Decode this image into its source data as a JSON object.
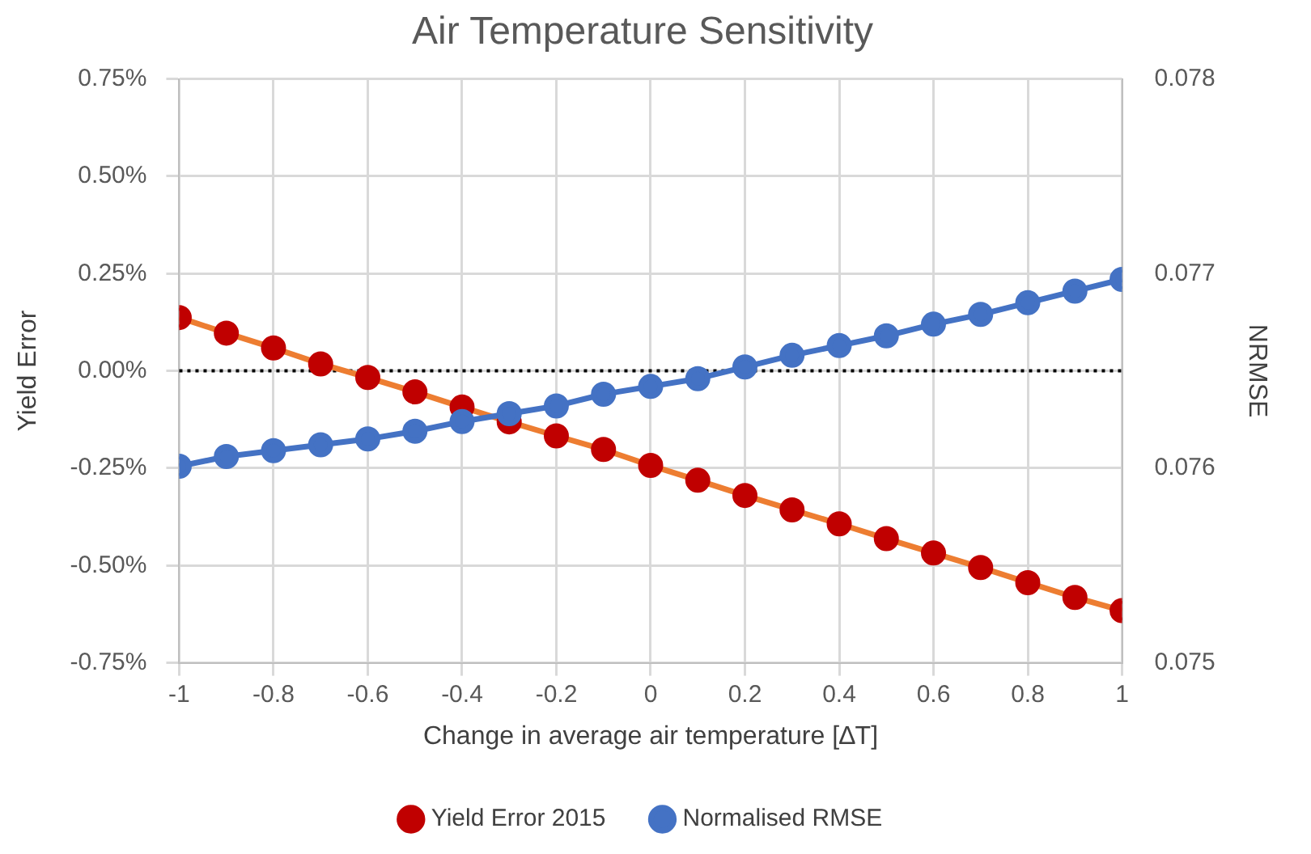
{
  "chart_data": {
    "type": "line",
    "title": "Air Temperature Sensitivity",
    "xlabel": "Change in average air temperature [∆T]",
    "ylabel": "Yield Error",
    "y2label": "NRMSE",
    "x": [
      -1,
      -0.9,
      -0.8,
      -0.7,
      -0.6,
      -0.5,
      -0.4,
      -0.3,
      -0.2,
      -0.1,
      0,
      0.1,
      0.2,
      0.3,
      0.4,
      0.5,
      0.6,
      0.7,
      0.8,
      0.9,
      1
    ],
    "series": [
      {
        "name": "Yield Error 2015",
        "color": "#ed7d31",
        "colors": [
          "#c00000",
          "#c00000",
          "#c00000",
          "#c00000",
          "#c00000",
          "#c00000",
          "#c00000",
          "#c00000",
          "#c00000",
          "#c00000",
          "#c00000",
          "#c00000",
          "#c00000",
          "#c00000",
          "#c00000",
          "#c00000",
          "#c00000",
          "#c00000",
          "#c00000",
          "#c00000",
          "#c00000"
        ],
        "values": [
          0.137,
          0.097,
          0.059,
          0.018,
          -0.017,
          -0.054,
          -0.093,
          -0.131,
          -0.167,
          -0.202,
          -0.243,
          -0.281,
          -0.32,
          -0.357,
          -0.393,
          -0.431,
          -0.468,
          -0.505,
          -0.544,
          -0.582,
          -0.616
        ]
      },
      {
        "name": "Normalised RMSE",
        "color": "#4472c4",
        "axis": "y2",
        "values": [
          0.07601,
          0.07606,
          0.07609,
          0.07612,
          0.07615,
          0.07619,
          0.07624,
          0.07628,
          0.07632,
          0.07638,
          0.07642,
          0.07646,
          0.07652,
          0.07658,
          0.07663,
          0.07668,
          0.07674,
          0.07679,
          0.07685,
          0.07691,
          0.07697
        ]
      }
    ],
    "xlim": [
      -1,
      1
    ],
    "xticks": [
      -1,
      -0.8,
      -0.6,
      -0.4,
      -0.2,
      0,
      0.2,
      0.4,
      0.6,
      0.8,
      1
    ],
    "ylim": [
      -0.75,
      0.75
    ],
    "yticks": [
      {
        "value": -0.75,
        "label": "-0.75%"
      },
      {
        "value": -0.5,
        "label": "-0.50%"
      },
      {
        "value": -0.25,
        "label": "-0.25%"
      },
      {
        "value": 0,
        "label": "0.00%"
      },
      {
        "value": 0.25,
        "label": "0.25%"
      },
      {
        "value": 0.5,
        "label": "0.50%"
      },
      {
        "value": 0.75,
        "label": "0.75%"
      }
    ],
    "y2lim": [
      0.075,
      0.078
    ],
    "y2ticks": [
      {
        "value": 0.075,
        "label": "0.075"
      },
      {
        "value": 0.076,
        "label": "0.076"
      },
      {
        "value": 0.077,
        "label": "0.077"
      },
      {
        "value": 0.078,
        "label": "0.078"
      }
    ],
    "ref_lines": [
      {
        "axis": "y",
        "value": 0,
        "color": "#000000",
        "line_style": "dotted"
      }
    ],
    "grid": true,
    "legend": "bottom",
    "marker": "circle",
    "line_style": "solid"
  }
}
